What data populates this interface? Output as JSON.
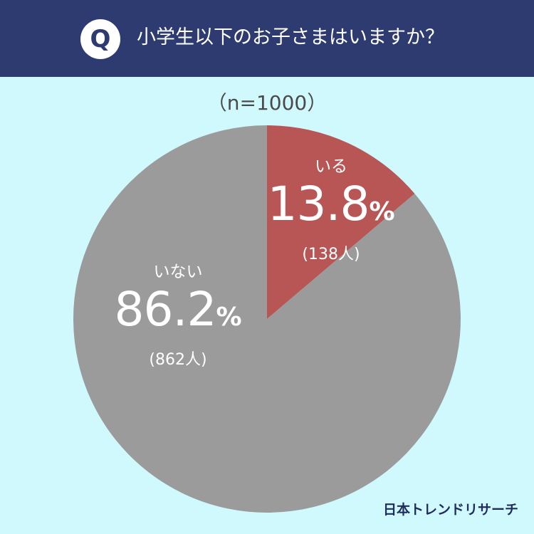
{
  "header": {
    "badge": "Q",
    "question": "小学生以下のお子さまはいますか？"
  },
  "chart_data": {
    "type": "pie",
    "title": "小学生以下のお子さまはいますか？",
    "sample": "（n=1000）",
    "slices": [
      {
        "label": "いる",
        "value": 13.8,
        "count": 138,
        "percent_text": "13.8",
        "unit": "%",
        "count_text": "(138人)",
        "color": "#b85555"
      },
      {
        "label": "いない",
        "value": 86.2,
        "count": 862,
        "percent_text": "86.2",
        "unit": "%",
        "count_text": "(862人)",
        "color": "#9b9b9b"
      }
    ],
    "start_angle": "12 o'clock",
    "direction": "clockwise"
  },
  "colors": {
    "header_bg": "#2d3b70",
    "background": "#cff9fc",
    "yes": "#b85555",
    "no": "#9b9b9b"
  },
  "logo": {
    "text": "日本トレンドリサーチ"
  }
}
